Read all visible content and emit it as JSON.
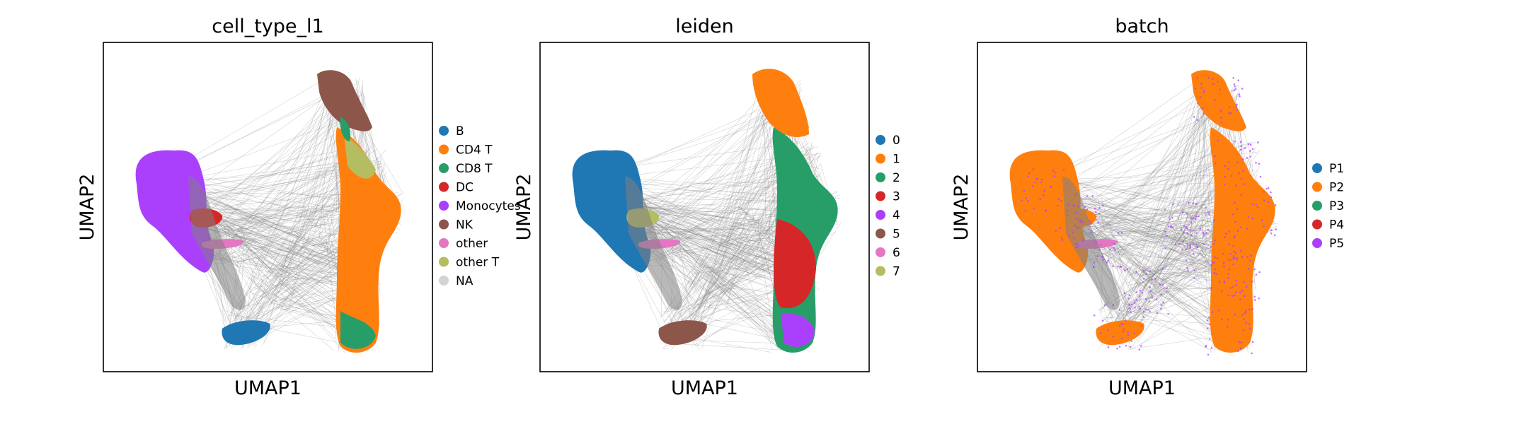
{
  "chart_data": [
    {
      "type": "scatter",
      "title": "cell_type_l1",
      "xlabel": "UMAP1",
      "ylabel": "UMAP2",
      "legend_position": "right",
      "legend": [
        {
          "name": "B",
          "color": "#1f77b4"
        },
        {
          "name": "CD4 T",
          "color": "#ff7f0e"
        },
        {
          "name": "CD8 T",
          "color": "#279e68"
        },
        {
          "name": "DC",
          "color": "#d62728"
        },
        {
          "name": "Monocytes",
          "color": "#aa40fc"
        },
        {
          "name": "NK",
          "color": "#8c564b"
        },
        {
          "name": "other",
          "color": "#e377c2"
        },
        {
          "name": "other T",
          "color": "#b5bd61"
        },
        {
          "name": "NA",
          "color": "#d3d3d3"
        }
      ]
    },
    {
      "type": "scatter",
      "title": "leiden",
      "xlabel": "UMAP1",
      "ylabel": "UMAP2",
      "legend_position": "right",
      "legend": [
        {
          "name": "0",
          "color": "#1f77b4"
        },
        {
          "name": "1",
          "color": "#ff7f0e"
        },
        {
          "name": "2",
          "color": "#279e68"
        },
        {
          "name": "3",
          "color": "#d62728"
        },
        {
          "name": "4",
          "color": "#aa40fc"
        },
        {
          "name": "5",
          "color": "#8c564b"
        },
        {
          "name": "6",
          "color": "#e377c2"
        },
        {
          "name": "7",
          "color": "#b5bd61"
        }
      ]
    },
    {
      "type": "scatter",
      "title": "batch",
      "xlabel": "UMAP1",
      "ylabel": "UMAP2",
      "legend_position": "right",
      "legend": [
        {
          "name": "P1",
          "color": "#1f77b4"
        },
        {
          "name": "P2",
          "color": "#ff7f0e"
        },
        {
          "name": "P3",
          "color": "#279e68"
        },
        {
          "name": "P4",
          "color": "#d62728"
        },
        {
          "name": "P5",
          "color": "#aa40fc"
        }
      ]
    }
  ]
}
